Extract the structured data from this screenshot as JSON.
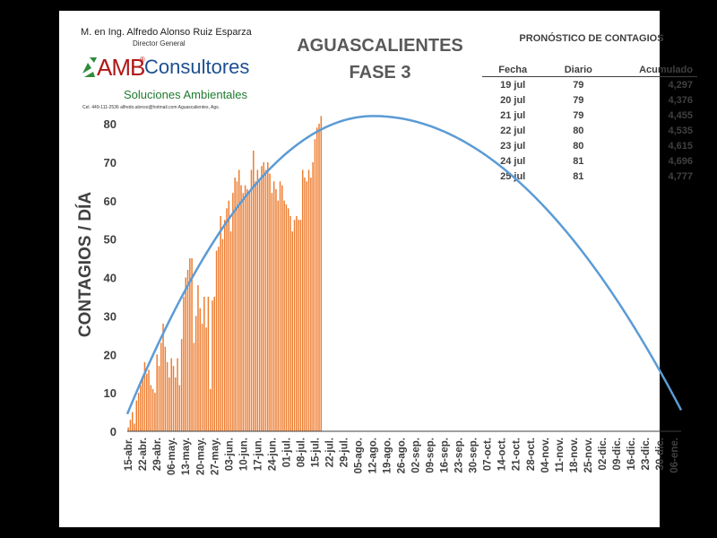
{
  "header": {
    "author": "M. en Ing. Alfredo Alonso Ruiz Esparza",
    "role": "Director General",
    "logo_amb": "AMB",
    "logo_reg": "®",
    "logo_consultores": "Consultores",
    "logo_tagline": "Soluciones Ambientales",
    "contact": "Cel. 449-111-2536     alfredo.alonso@hotmail.com     Aguascalientes, Ags."
  },
  "title": {
    "line1": "AGUASCALIENTES",
    "line2": "FASE 3"
  },
  "forecast": {
    "title": "PRONÓSTICO DE CONTAGIOS",
    "headers": [
      "Fecha",
      "Diario",
      "Acumulado"
    ],
    "rows": [
      {
        "fecha": "19 jul",
        "diario": "79",
        "acumulado": "4,297"
      },
      {
        "fecha": "20 jul",
        "diario": "79",
        "acumulado": "4,376"
      },
      {
        "fecha": "21 jul",
        "diario": "79",
        "acumulado": "4,455"
      },
      {
        "fecha": "22 jul",
        "diario": "80",
        "acumulado": "4,535"
      },
      {
        "fecha": "23 jul",
        "diario": "80",
        "acumulado": "4,615"
      },
      {
        "fecha": "24 jul",
        "diario": "81",
        "acumulado": "4,696"
      },
      {
        "fecha": "25 jul",
        "diario": "81",
        "acumulado": "4,777"
      }
    ]
  },
  "colors": {
    "bar": "#ed7d31",
    "bar_edge": "#ffffff",
    "curve": "#5b9bd5",
    "axis": "#404040",
    "text": "#404040"
  },
  "chart_data": {
    "type": "bar",
    "ylabel": "CONTAGIOS / DÍA",
    "xlabel": "",
    "ylim": [
      0,
      80
    ],
    "yticks": [
      0,
      10,
      20,
      30,
      40,
      50,
      60,
      70,
      80
    ],
    "x_start_label": "15-abr.",
    "x_total_days": 270,
    "tick_labels": [
      "15-abr.",
      "22-abr.",
      "29-abr.",
      "06-may.",
      "13-may.",
      "20-may.",
      "27-may.",
      "03-jun.",
      "10-jun.",
      "17-jun.",
      "24-jun.",
      "01-jul.",
      "08-jul.",
      "15-jul.",
      "22-jul.",
      "29-jul.",
      "05-ago.",
      "12-ago.",
      "19-ago.",
      "26-ago.",
      "02-sep.",
      "09-sep.",
      "16-sep.",
      "23-sep.",
      "30-sep.",
      "07-oct.",
      "14-oct.",
      "21-oct.",
      "28-oct.",
      "04-nov.",
      "11-nov.",
      "18-nov.",
      "25-nov.",
      "02-dic.",
      "09-dic.",
      "16-dic.",
      "23-dic.",
      "30-dic.",
      "06-ene."
    ],
    "series": [
      {
        "name": "Contagios diarios",
        "kind": "bar",
        "values": [
          1,
          3,
          5,
          2,
          8,
          10,
          12,
          14,
          18,
          15,
          16,
          12,
          11,
          10,
          20,
          17,
          23,
          28,
          22,
          18,
          14,
          19,
          17,
          14,
          19,
          12,
          24,
          35,
          40,
          42,
          45,
          45,
          23,
          30,
          38,
          32,
          28,
          35,
          27,
          35,
          11,
          34,
          35,
          47,
          48,
          56,
          50,
          55,
          58,
          60,
          52,
          62,
          66,
          65,
          68,
          64,
          62,
          64,
          63,
          62,
          68,
          73,
          65,
          68,
          65,
          69,
          70,
          68,
          70,
          67,
          62,
          65,
          63,
          60,
          65,
          64,
          60,
          59,
          58,
          56,
          52,
          55,
          56,
          55,
          55,
          68,
          66,
          65,
          68,
          66,
          70,
          76,
          79,
          80,
          82
        ]
      },
      {
        "name": "Tendencia",
        "kind": "line",
        "peak_value": 82,
        "peak_day": 120,
        "start_value": 4.5,
        "end_value": 5.5
      }
    ]
  }
}
